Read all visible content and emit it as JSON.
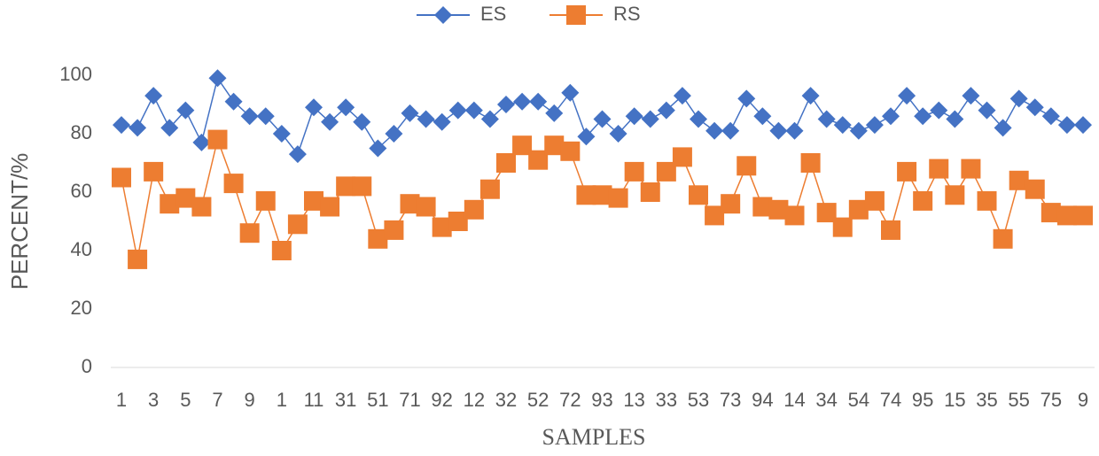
{
  "chart_data": {
    "type": "line",
    "xlabel": "SAMPLES",
    "ylabel": "PERCENT/%",
    "categories": [
      "1",
      null,
      "3",
      null,
      "5",
      null,
      "7",
      null,
      "9",
      null,
      "1",
      null,
      "11",
      null,
      "31",
      null,
      "51",
      null,
      "71",
      null,
      "92",
      null,
      "12",
      null,
      "32",
      null,
      "52",
      null,
      "72",
      null,
      "93",
      null,
      "13",
      null,
      "33",
      null,
      "53",
      null,
      "73",
      null,
      "94",
      null,
      "14",
      null,
      "34",
      null,
      "54",
      null,
      "74",
      null,
      "95",
      null,
      "15",
      null,
      "35",
      null,
      "55",
      null,
      "75",
      null,
      "9"
    ],
    "series": [
      {
        "name": "ES",
        "color": "#4472c4",
        "marker": "diamond",
        "values": [
          83,
          82,
          93,
          82,
          88,
          77,
          99,
          91,
          86,
          86,
          80,
          73,
          89,
          84,
          89,
          84,
          75,
          80,
          87,
          85,
          84,
          88,
          88,
          85,
          90,
          91,
          91,
          87,
          94,
          79,
          85,
          80,
          86,
          85,
          88,
          93,
          85,
          81,
          81,
          92,
          86,
          81,
          81,
          93,
          85,
          83,
          81,
          83,
          86,
          93,
          86,
          88,
          85,
          93,
          88,
          82,
          92,
          89,
          86,
          83,
          83
        ]
      },
      {
        "name": "RS",
        "color": "#ed7d31",
        "marker": "square",
        "values": [
          65,
          37,
          67,
          56,
          58,
          55,
          78,
          63,
          46,
          57,
          40,
          49,
          57,
          55,
          62,
          62,
          44,
          47,
          56,
          55,
          48,
          50,
          54,
          61,
          70,
          76,
          71,
          76,
          74,
          59,
          59,
          58,
          67,
          60,
          67,
          72,
          59,
          52,
          56,
          69,
          55,
          54,
          52,
          70,
          53,
          48,
          54,
          57,
          47,
          67,
          57,
          68,
          59,
          68,
          57,
          44,
          64,
          61,
          53,
          52,
          52
        ]
      }
    ],
    "ylim": [
      0,
      100
    ],
    "yticks": [
      0,
      20,
      40,
      60,
      80,
      100
    ],
    "grid": false,
    "legend": "top"
  }
}
